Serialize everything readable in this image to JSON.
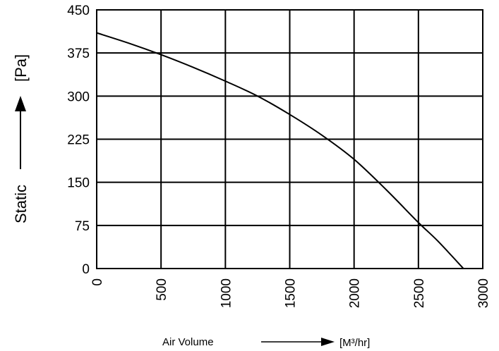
{
  "chart_data": {
    "type": "line",
    "title": "",
    "xlabel": "Air Volume",
    "xunit": "[M³/hr]",
    "ylabel": "Static",
    "yunit": "[Pa]",
    "xlim": [
      0,
      3000
    ],
    "ylim": [
      0,
      450
    ],
    "grid": true,
    "x_ticks": [
      "0",
      "500",
      "1000",
      "1500",
      "2000",
      "2500",
      "3000"
    ],
    "y_ticks": [
      "0",
      "75",
      "150",
      "225",
      "300",
      "375",
      "450"
    ],
    "series": [
      {
        "x": [
          0,
          250,
          500,
          750,
          1000,
          1250,
          1500,
          1750,
          2000,
          2250,
          2500,
          2650,
          2850
        ],
        "y": [
          410,
          392,
          372,
          350,
          326,
          300,
          268,
          232,
          190,
          137,
          80,
          48,
          0
        ]
      }
    ],
    "colors": {
      "line": "#000000",
      "grid": "#000000",
      "background": "#ffffff"
    }
  }
}
